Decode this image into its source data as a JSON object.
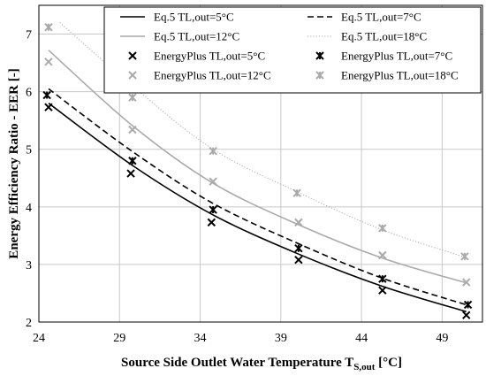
{
  "chart_data": {
    "type": "line",
    "title": "",
    "xlabel": "Source Side Outlet Water Temperature T",
    "xlabel_sub": "S,out",
    "xlabel_unit": " [°C]",
    "ylabel": "Energy Efficiency Ratio - EER [-]",
    "xlim": [
      24,
      51.5
    ],
    "ylim": [
      2,
      7.5
    ],
    "x_ticks": [
      24,
      29,
      34,
      39,
      44,
      49
    ],
    "y_ticks": [
      2,
      3,
      4,
      5,
      6,
      7
    ],
    "grid": "both",
    "legend_position": "top-right",
    "lines": [
      {
        "name": "Eq.5 TL,out=5°C",
        "color": "#000000",
        "dash": "solid",
        "x": [
          24.6,
          29.8,
          34.8,
          40.1,
          45.3,
          50.5
        ],
        "y": [
          5.8,
          4.72,
          3.86,
          3.18,
          2.62,
          2.18
        ]
      },
      {
        "name": "Eq.5 TL,out=7°C",
        "color": "#000000",
        "dash": "dashed",
        "x": [
          24.6,
          29.8,
          34.8,
          40.1,
          45.3,
          50.5
        ],
        "y": [
          6.05,
          4.96,
          4.06,
          3.36,
          2.76,
          2.3
        ]
      },
      {
        "name": "Eq.5 TL,out=12°C",
        "color": "#aaaaaa",
        "dash": "solid",
        "x": [
          24.6,
          29.8,
          34.8,
          40.1,
          45.3,
          50.5
        ],
        "y": [
          6.72,
          5.41,
          4.41,
          3.69,
          3.11,
          2.68
        ]
      },
      {
        "name": "Eq.5 TL,out=18°C",
        "color": "#aaaaaa",
        "dash": "dotted",
        "x": [
          25.3,
          29.8,
          34.8,
          40.1,
          45.3,
          50.5
        ],
        "y": [
          7.2,
          6.1,
          5.0,
          4.25,
          3.6,
          3.12
        ]
      }
    ],
    "markers": [
      {
        "name": "EnergyPlus TL,out=5°C",
        "color": "#000000",
        "shape": "x",
        "x": [
          24.6,
          29.7,
          34.7,
          40.1,
          45.3,
          50.5
        ],
        "y": [
          5.73,
          4.58,
          3.73,
          3.08,
          2.55,
          2.12
        ]
      },
      {
        "name": "EnergyPlus TL,out=7°C",
        "color": "#000000",
        "shape": "star",
        "x": [
          24.5,
          29.8,
          34.8,
          40.1,
          45.3,
          50.6
        ],
        "y": [
          5.94,
          4.8,
          3.95,
          3.28,
          2.75,
          2.3
        ]
      },
      {
        "name": "EnergyPlus TL,out=12°C",
        "color": "#aaaaaa",
        "shape": "x",
        "x": [
          24.6,
          29.8,
          34.8,
          40.1,
          45.3,
          50.5
        ],
        "y": [
          6.52,
          5.34,
          4.44,
          3.73,
          3.16,
          2.69
        ]
      },
      {
        "name": "EnergyPlus TL,out=18°C",
        "color": "#aaaaaa",
        "shape": "star",
        "x": [
          24.6,
          29.8,
          34.8,
          40.0,
          45.3,
          50.4
        ],
        "y": [
          7.12,
          5.9,
          4.97,
          4.24,
          3.63,
          3.14
        ]
      }
    ]
  }
}
